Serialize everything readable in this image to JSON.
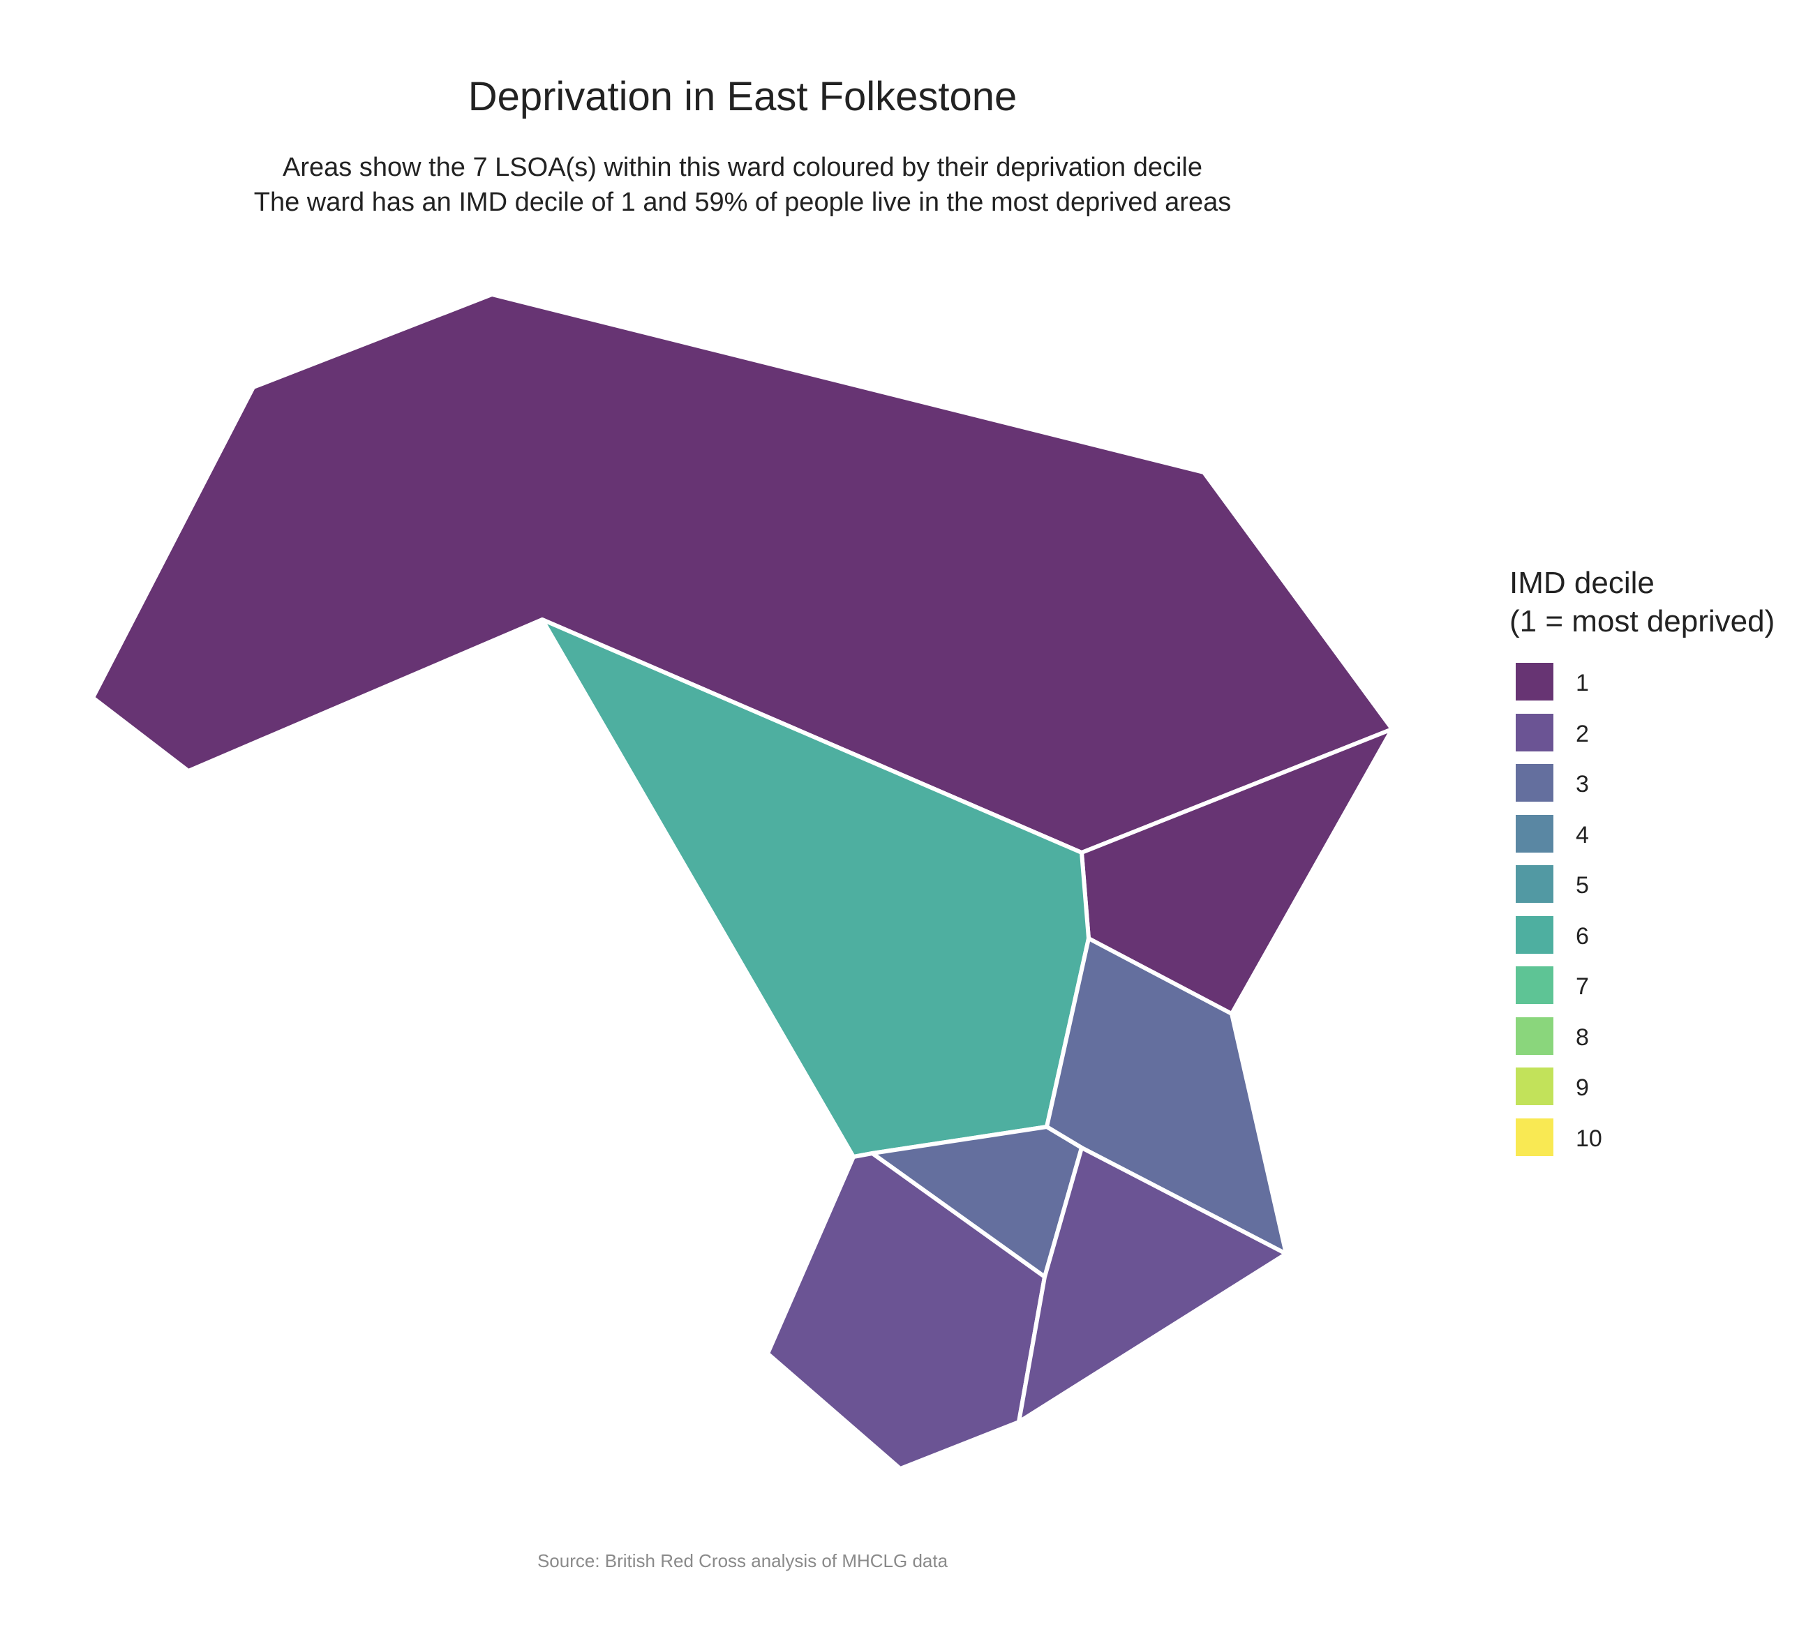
{
  "title": "Deprivation in East Folkestone",
  "subtitle_line1": "Areas show the 7 LSOA(s) within this ward coloured by their deprivation decile",
  "subtitle_line2": "The ward has an IMD decile of 1 and 59% of people live in the most deprived areas",
  "caption": "Source: British Red Cross analysis of MHCLG data",
  "legend": {
    "title_line1": "IMD decile",
    "title_line2": "(1 = most deprived)",
    "items": [
      {
        "label": "1",
        "color": "#673473"
      },
      {
        "label": "2",
        "color": "#6b5494"
      },
      {
        "label": "3",
        "color": "#646f9e"
      },
      {
        "label": "4",
        "color": "#5a87a3"
      },
      {
        "label": "5",
        "color": "#5299a3"
      },
      {
        "label": "6",
        "color": "#4eafa0"
      },
      {
        "label": "7",
        "color": "#5ec495"
      },
      {
        "label": "8",
        "color": "#8ad67c"
      },
      {
        "label": "9",
        "color": "#c2e25a"
      },
      {
        "label": "10",
        "color": "#f9e953"
      }
    ]
  },
  "areas": [
    {
      "id": "lsoa-1",
      "decile": 1
    },
    {
      "id": "lsoa-2",
      "decile": 1
    },
    {
      "id": "lsoa-3",
      "decile": 6
    },
    {
      "id": "lsoa-4",
      "decile": 3
    },
    {
      "id": "lsoa-5",
      "decile": 3
    },
    {
      "id": "lsoa-6",
      "decile": 2
    },
    {
      "id": "lsoa-7",
      "decile": 2
    }
  ]
}
